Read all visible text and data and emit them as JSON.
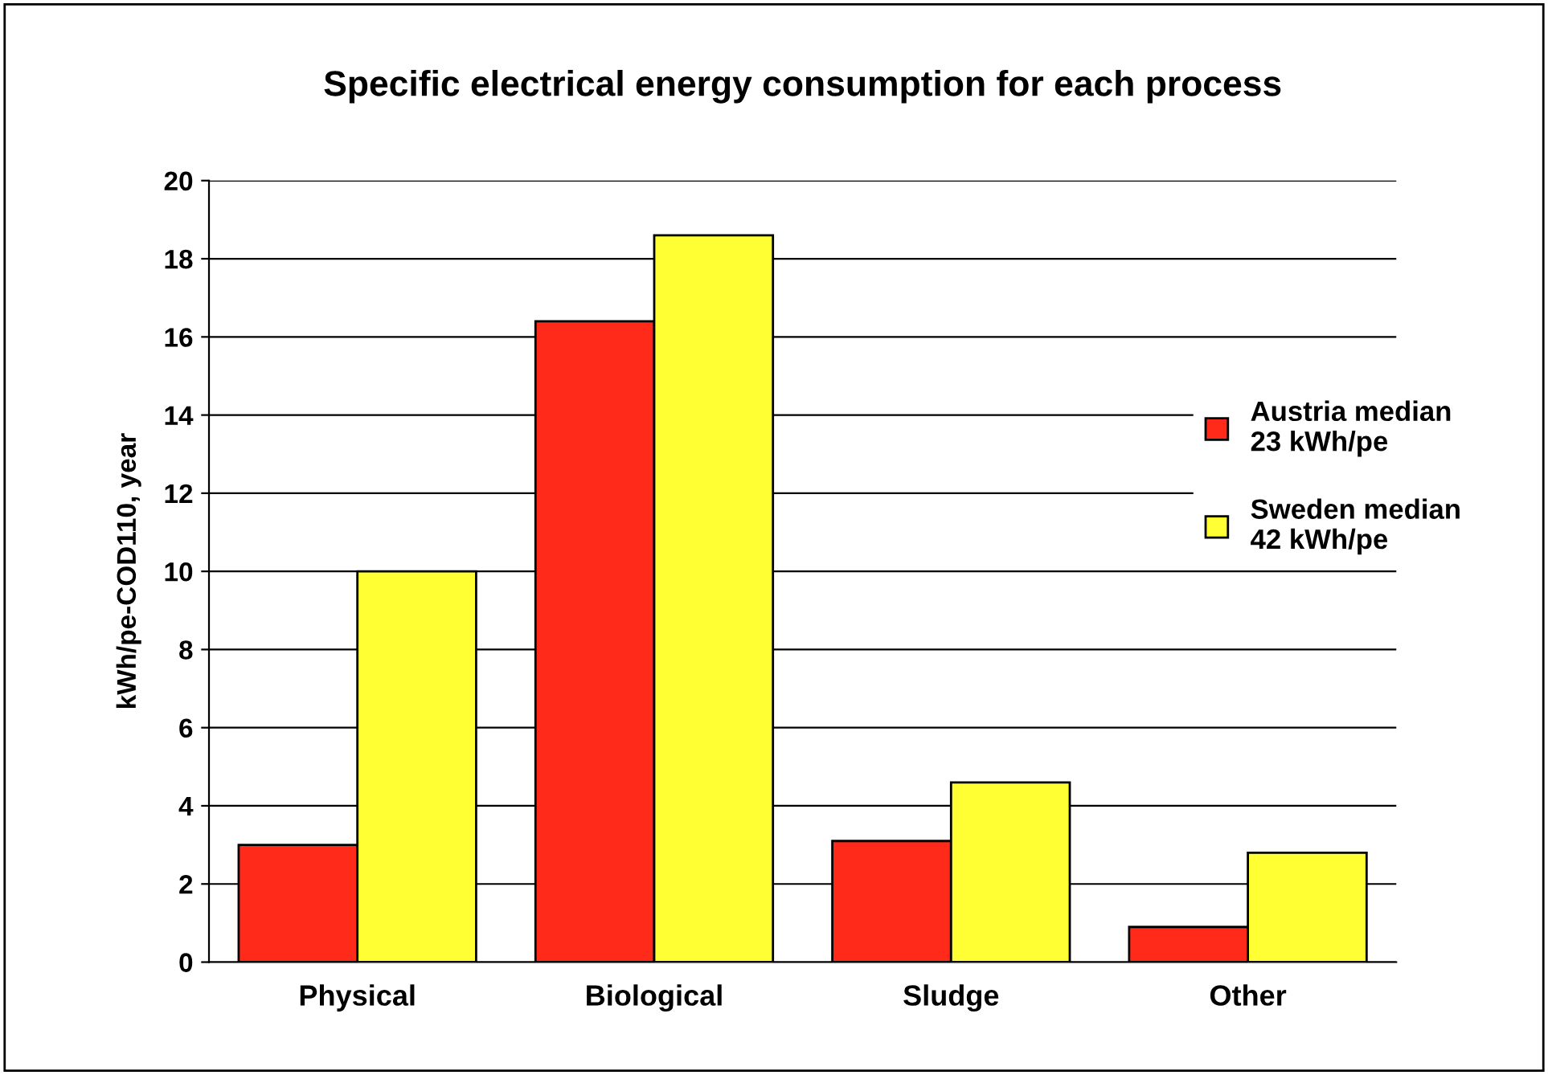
{
  "chart_data": {
    "type": "bar",
    "title": "Specific electrical energy consumption for each process",
    "ylabel": "kWh/pe-COD110, year",
    "categories": [
      "Physical",
      "Biological",
      "Sludge",
      "Other"
    ],
    "series": [
      {
        "name": "Austria median\n23 kWh/pe",
        "color": "#ff2a1a",
        "values": [
          3.0,
          16.4,
          3.1,
          0.9
        ]
      },
      {
        "name": "Sweden median\n42 kWh/pe",
        "color": "#ffff33",
        "values": [
          10.0,
          18.6,
          4.6,
          2.8
        ]
      }
    ],
    "ylim": [
      0,
      20
    ],
    "yticks": [
      0,
      2,
      4,
      6,
      8,
      10,
      12,
      14,
      16,
      18,
      20
    ],
    "grid": "y",
    "legend": "right"
  }
}
